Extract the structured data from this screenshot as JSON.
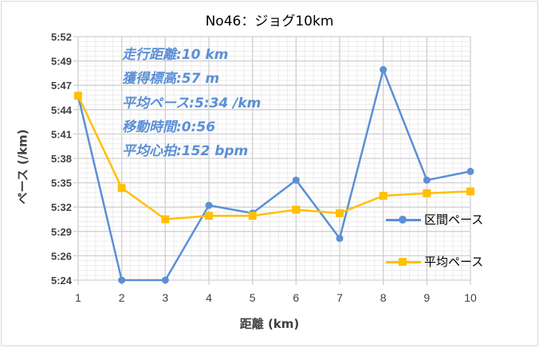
{
  "chart_data": {
    "type": "line",
    "title": "No46：ジョグ10km",
    "xlabel": "距離 (km)",
    "ylabel": "ペース (/km)",
    "x": [
      1,
      2,
      3,
      4,
      5,
      6,
      7,
      8,
      9,
      10
    ],
    "x_tick_labels": [
      "1",
      "2",
      "3",
      "4",
      "5",
      "6",
      "7",
      "8",
      "9",
      "10"
    ],
    "y_unit": "seconds per km",
    "ylim": [
      324,
      352
    ],
    "y_tick_labels": [
      "5:24",
      "5:26",
      "5:29",
      "5:32",
      "5:35",
      "5:38",
      "5:41",
      "5:44",
      "5:47",
      "5:49",
      "5:52"
    ],
    "grid": true,
    "legend_position": "right",
    "series": [
      {
        "name": "区間ペース",
        "color": "#5b8fd6",
        "marker": "circle",
        "values": [
          345.2,
          324,
          324,
          332.6,
          331.7,
          335.5,
          328.8,
          348.2,
          335.5,
          336.5
        ]
      },
      {
        "name": "平均ペース",
        "color": "#ffc000",
        "marker": "square",
        "values": [
          345.2,
          334.6,
          331.0,
          331.4,
          331.4,
          332.1,
          331.7,
          333.7,
          334.0,
          334.2
        ]
      }
    ],
    "annotations": [
      "走行距離:10 km",
      "獲得標高:57 m",
      "平均ペース:5:34 /km",
      "移動時間:0:56",
      "平均心拍:152 bpm"
    ]
  }
}
